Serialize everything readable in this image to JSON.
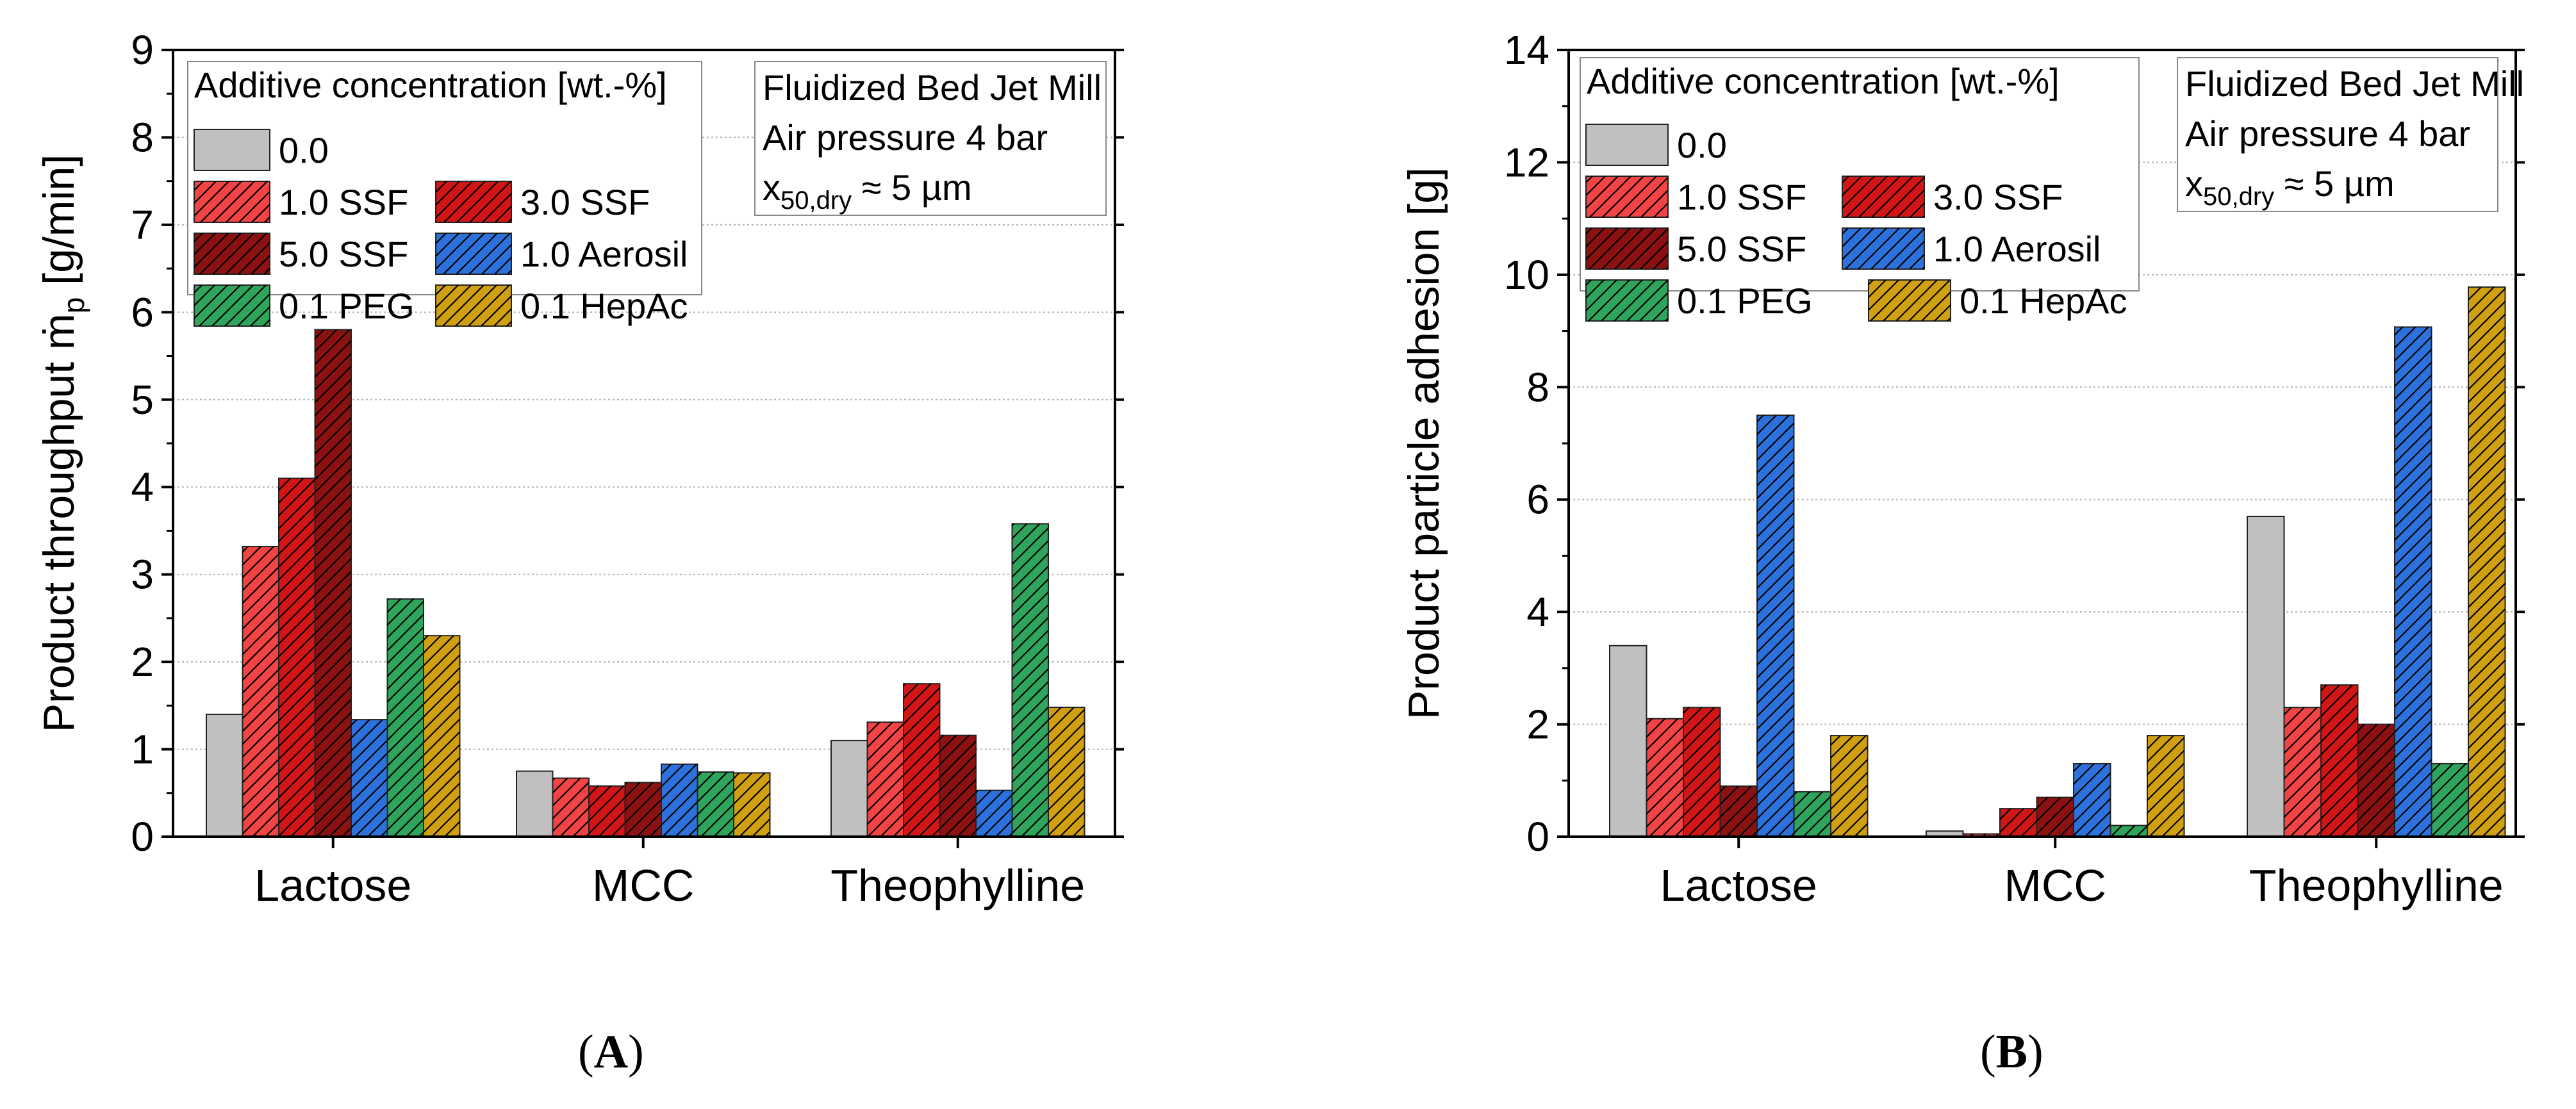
{
  "chart_data": [
    {
      "type": "bar",
      "panel_label": "A",
      "title": "",
      "xlabel": "",
      "ylabel": "Product throughput ṁ",
      "ylabel_subscript": "p",
      "ylabel_unit": "[g/min]",
      "ylim": [
        0,
        9
      ],
      "yticks": [
        "0",
        "1",
        "2",
        "3",
        "4",
        "5",
        "6",
        "7",
        "8",
        "9"
      ],
      "grid": true,
      "categories": [
        "Lactose",
        "MCC",
        "Theophylline"
      ],
      "legend_title": "Additive concentration [wt.-%]",
      "info_box": {
        "line1": "Fluidized Bed Jet Mill",
        "line2": "Air pressure 4 bar",
        "line3_main": "x",
        "line3_sub": "50,dry",
        "line3_rest": " ≈ 5 µm"
      },
      "series": [
        {
          "name": "0.0",
          "color": "#c0c0c0",
          "hatch": false,
          "values": [
            1.4,
            0.75,
            1.1
          ]
        },
        {
          "name": "1.0 SSF",
          "color": "#f24444",
          "hatch": true,
          "values": [
            3.32,
            0.67,
            1.31
          ]
        },
        {
          "name": "3.0 SSF",
          "color": "#d21616",
          "hatch": true,
          "values": [
            4.1,
            0.58,
            1.75
          ]
        },
        {
          "name": "5.0 SSF",
          "color": "#8c1212",
          "hatch": true,
          "values": [
            5.8,
            0.62,
            1.16
          ]
        },
        {
          "name": "1.0 Aerosil",
          "color": "#2d72dc",
          "hatch": true,
          "values": [
            1.34,
            0.83,
            0.53
          ]
        },
        {
          "name": "0.1 PEG",
          "color": "#2ea45c",
          "hatch": true,
          "values": [
            2.72,
            0.74,
            3.58
          ]
        },
        {
          "name": "0.1 HepAc",
          "color": "#d1a010",
          "hatch": true,
          "values": [
            2.3,
            0.73,
            1.48
          ]
        }
      ]
    },
    {
      "type": "bar",
      "panel_label": "B",
      "title": "",
      "xlabel": "",
      "ylabel": "Product particle adhesion [g]",
      "ylim": [
        0,
        14
      ],
      "yticks": [
        "0",
        "2",
        "4",
        "6",
        "8",
        "10",
        "12",
        "14"
      ],
      "grid": true,
      "categories": [
        "Lactose",
        "MCC",
        "Theophylline"
      ],
      "legend_title": "Additive concentration [wt.-%]",
      "info_box": {
        "line1": "Fluidized Bed Jet Mill",
        "line2": "Air pressure 4 bar",
        "line3_main": "x",
        "line3_sub": "50,dry",
        "line3_rest": " ≈ 5 µm"
      },
      "series": [
        {
          "name": "0.0",
          "color": "#c0c0c0",
          "hatch": false,
          "values": [
            3.4,
            0.1,
            5.7
          ]
        },
        {
          "name": "1.0 SSF",
          "color": "#f24444",
          "hatch": true,
          "values": [
            2.1,
            0.05,
            2.3
          ]
        },
        {
          "name": "3.0 SSF",
          "color": "#d21616",
          "hatch": true,
          "values": [
            2.3,
            0.5,
            2.7
          ]
        },
        {
          "name": "5.0 SSF",
          "color": "#8c1212",
          "hatch": true,
          "values": [
            0.9,
            0.7,
            2.0
          ]
        },
        {
          "name": "1.0 Aerosil",
          "color": "#2d72dc",
          "hatch": true,
          "values": [
            7.5,
            1.3,
            9.07
          ]
        },
        {
          "name": "0.1 PEG",
          "color": "#2ea45c",
          "hatch": true,
          "values": [
            0.8,
            0.2,
            1.3
          ]
        },
        {
          "name": "0.1 HepAc",
          "color": "#d1a010",
          "hatch": true,
          "values": [
            1.8,
            1.8,
            9.78
          ]
        }
      ]
    }
  ]
}
